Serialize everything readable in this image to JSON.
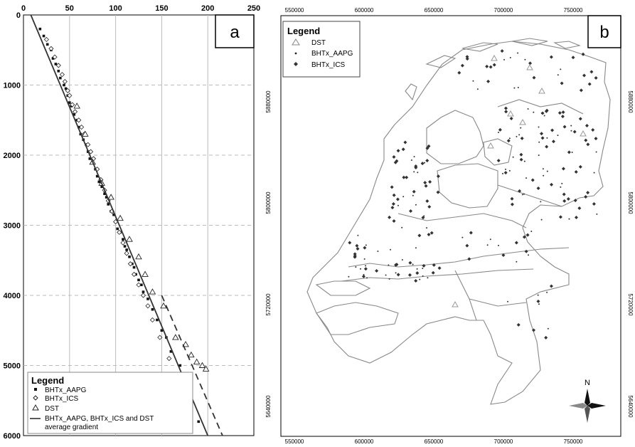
{
  "chart_data": [
    {
      "type": "scatter",
      "panel_label": "a",
      "x_ticks": [
        0,
        50,
        100,
        150,
        200,
        250
      ],
      "y_ticks": [
        0,
        1000,
        2000,
        3000,
        4000,
        5000,
        6000
      ],
      "xlim": [
        0,
        250
      ],
      "ylim": [
        6000,
        0
      ],
      "grid": true,
      "legend_placement": "bottom-left",
      "legend": {
        "title": "Legend",
        "items": [
          "BHTx_AAPG",
          "BHTx_ICS",
          "DST",
          "BHTx_AAPG, BHTx_ICS and DST",
          "average gradient"
        ]
      },
      "series": [
        {
          "name": "BHTx_AAPG",
          "marker": "filled-square",
          "x": [
            18,
            22,
            26,
            30,
            32,
            35,
            38,
            40,
            44,
            46,
            48,
            50,
            52,
            55,
            58,
            60,
            62,
            65,
            68,
            70,
            72,
            75,
            78,
            80,
            82,
            85,
            88,
            90,
            92,
            95,
            98,
            100,
            102,
            105,
            108,
            110,
            112,
            115,
            118,
            120,
            122,
            125,
            128,
            130,
            135,
            140,
            145,
            150,
            155,
            160,
            170,
            190
          ],
          "y": [
            200,
            300,
            420,
            500,
            620,
            700,
            800,
            900,
            1000,
            1050,
            1150,
            1250,
            1300,
            1420,
            1500,
            1600,
            1700,
            1780,
            1850,
            1950,
            2050,
            2100,
            2200,
            2300,
            2380,
            2450,
            2550,
            2600,
            2700,
            2800,
            2850,
            2950,
            3050,
            3100,
            3200,
            3300,
            3350,
            3450,
            3550,
            3600,
            3700,
            3780,
            3850,
            3950,
            4050,
            4200,
            4350,
            4500,
            4600,
            4800,
            5000,
            5800
          ]
        },
        {
          "name": "BHTx_ICS",
          "marker": "open-diamond",
          "x": [
            25,
            30,
            34,
            38,
            42,
            45,
            48,
            50,
            53,
            56,
            60,
            63,
            66,
            70,
            73,
            76,
            80,
            84,
            88,
            92,
            96,
            100,
            104,
            108,
            112,
            116,
            120,
            125,
            130,
            135,
            140,
            148,
            158,
            168,
            178
          ],
          "y": [
            350,
            480,
            600,
            720,
            850,
            950,
            1080,
            1150,
            1280,
            1380,
            1500,
            1600,
            1700,
            1850,
            1950,
            2050,
            2200,
            2350,
            2500,
            2650,
            2800,
            2950,
            3100,
            3250,
            3400,
            3550,
            3700,
            3850,
            4000,
            4150,
            4350,
            4600,
            4900,
            5200,
            5500
          ]
        },
        {
          "name": "DST",
          "marker": "open-triangle",
          "x": [
            58,
            67,
            75,
            85,
            95,
            105,
            115,
            125,
            132,
            140,
            152,
            165,
            176,
            182,
            188,
            194,
            198
          ],
          "y": [
            1300,
            1700,
            2100,
            2400,
            2600,
            2900,
            3200,
            3450,
            3700,
            3950,
            4150,
            4600,
            4700,
            4850,
            4950,
            5000,
            5050
          ]
        },
        {
          "name": "average gradient",
          "line": "solid",
          "x": [
            8,
            200
          ],
          "y": [
            0,
            6000
          ]
        },
        {
          "name": "",
          "line": "dashed",
          "x": [
            150,
            216
          ],
          "y": [
            4000,
            6000
          ]
        }
      ]
    },
    {
      "type": "map",
      "panel_label": "b",
      "x_ticks": [
        "550000",
        "600000",
        "650000",
        "700000",
        "750000"
      ],
      "y_ticks": [
        "5880000",
        "5800000",
        "5720000",
        "5640000"
      ],
      "legend": {
        "title": "Legend",
        "items": [
          "DST",
          "BHTx_AAPG",
          "BHTx_ICS"
        ]
      },
      "north_arrow_label": "N"
    }
  ]
}
